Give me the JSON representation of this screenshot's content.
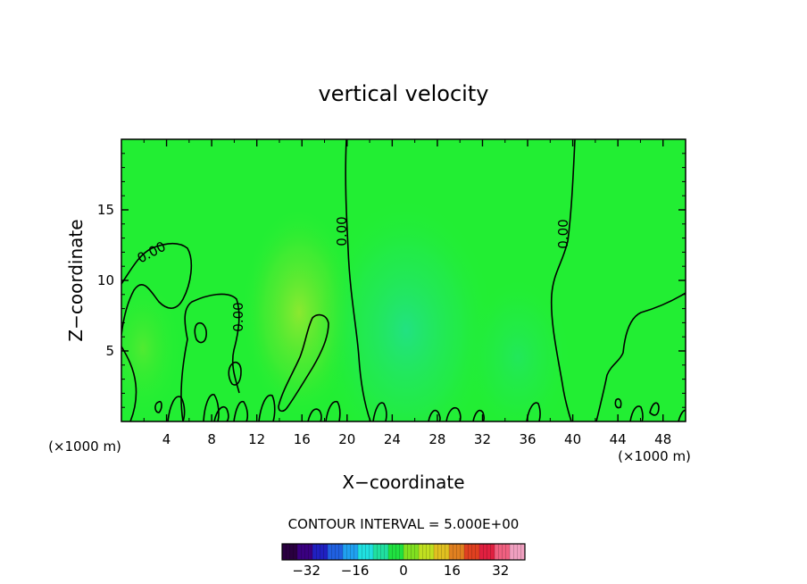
{
  "chart_data": {
    "type": "contour",
    "title": "vertical velocity",
    "xlabel": "X−coordinate",
    "ylabel": "Z−coordinate",
    "x_unit_left": "(×1000 m)",
    "x_unit_right": "(×1000 m)",
    "xlim": [
      0,
      50
    ],
    "ylim": [
      0,
      20
    ],
    "x_ticks": [
      4,
      8,
      12,
      16,
      20,
      24,
      28,
      32,
      36,
      40,
      44,
      48
    ],
    "y_ticks": [
      5,
      10,
      15
    ],
    "contour_interval_label": "CONTOUR INTERVAL = 5.000E+00",
    "contour_label": "0.00",
    "colorbar": {
      "range": [
        -40,
        40
      ],
      "ticks": [
        -32,
        -16,
        0,
        16,
        32
      ],
      "colors": [
        "#2a0040",
        "#3a0080",
        "#2020c0",
        "#2060e0",
        "#20a0f0",
        "#20e0e0",
        "#20e0a0",
        "#20e040",
        "#80e020",
        "#c0e020",
        "#e0c020",
        "#e08020",
        "#e04020",
        "#e02040",
        "#f06080",
        "#f0a0c0"
      ]
    },
    "field_background": "#22ee33",
    "contour_color": "#000000"
  }
}
